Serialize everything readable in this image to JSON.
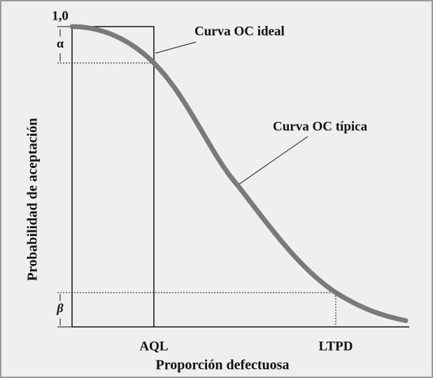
{
  "y_axis": {
    "label": "Probabilidad de aceptación",
    "top": "1,0",
    "alpha": "α",
    "beta": "β"
  },
  "x_axis": {
    "label": "Proporción defectuosa",
    "aql": "AQL",
    "ltpd": "LTPD"
  },
  "annotations": {
    "ideal": "Curva OC ideal",
    "typical": "Curva OC típica"
  }
}
